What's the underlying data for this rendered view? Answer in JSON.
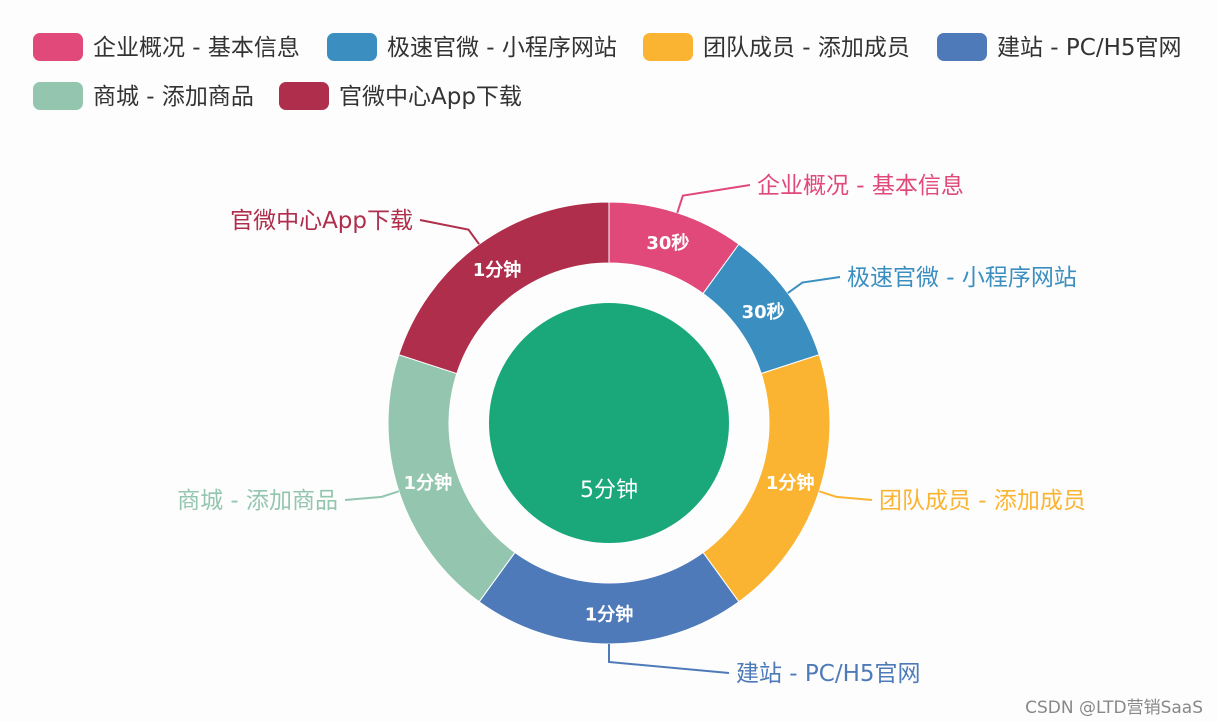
{
  "chart_data": {
    "type": "pie",
    "variant": "donut-with-inner-pie",
    "legend_position": "top",
    "categories": [
      "企业概况 - 基本信息",
      "极速官微 - 小程序网站",
      "团队成员 - 添加成员",
      "建站 - PC/H5官网",
      "商城 - 添加商品",
      "官微中心App下载"
    ],
    "values": [
      0.5,
      0.5,
      1,
      1,
      1,
      1
    ],
    "value_labels": [
      "30秒",
      "30秒",
      "1分钟",
      "1分钟",
      "1分钟",
      "1分钟"
    ],
    "colors": [
      "#e0497a",
      "#3b8fc0",
      "#fbb432",
      "#4e7aba",
      "#94c6af",
      "#ae2e4c"
    ],
    "inner": {
      "label": "5分钟",
      "color": "#1aa87a"
    }
  },
  "watermark": "CSDN @LTD营销SaaS"
}
